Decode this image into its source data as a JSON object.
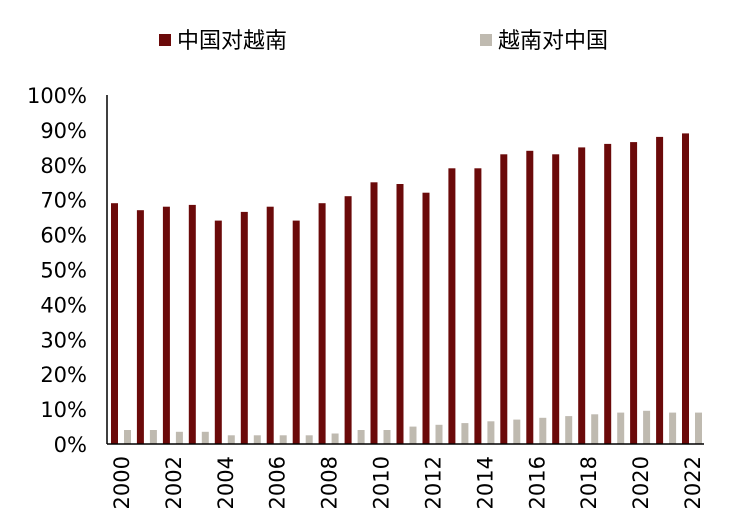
{
  "chart_data": {
    "type": "bar",
    "categories": [
      "2000",
      "2001",
      "2002",
      "2003",
      "2004",
      "2005",
      "2006",
      "2007",
      "2008",
      "2009",
      "2010",
      "2011",
      "2012",
      "2013",
      "2014",
      "2015",
      "2016",
      "2017",
      "2018",
      "2019",
      "2020",
      "2021",
      "2022"
    ],
    "x_tick_labels": [
      "2000",
      "2002",
      "2004",
      "2006",
      "2008",
      "2010",
      "2012",
      "2014",
      "2016",
      "2018",
      "2020",
      "2022"
    ],
    "series": [
      {
        "name": "中国对越南",
        "color": "#6b0a0a",
        "values": [
          69,
          67,
          68,
          68.5,
          64,
          66.5,
          68,
          64,
          69,
          71,
          75,
          74.5,
          72,
          79,
          79,
          83,
          84,
          83,
          85,
          86,
          86.5,
          88,
          89
        ]
      },
      {
        "name": "越南对中国",
        "color": "#bfbab0",
        "values": [
          4,
          4,
          3.5,
          3.5,
          2.5,
          2.5,
          2.5,
          2.5,
          3,
          4,
          4,
          5,
          5.5,
          6,
          6.5,
          7,
          7.5,
          8,
          8.5,
          9,
          9.5,
          9,
          9
        ]
      }
    ],
    "y_tick_labels": [
      "0%",
      "10%",
      "20%",
      "30%",
      "40%",
      "50%",
      "60%",
      "70%",
      "80%",
      "90%",
      "100%"
    ],
    "ylim": [
      0,
      100
    ],
    "legend_position": "top",
    "grid": false
  }
}
